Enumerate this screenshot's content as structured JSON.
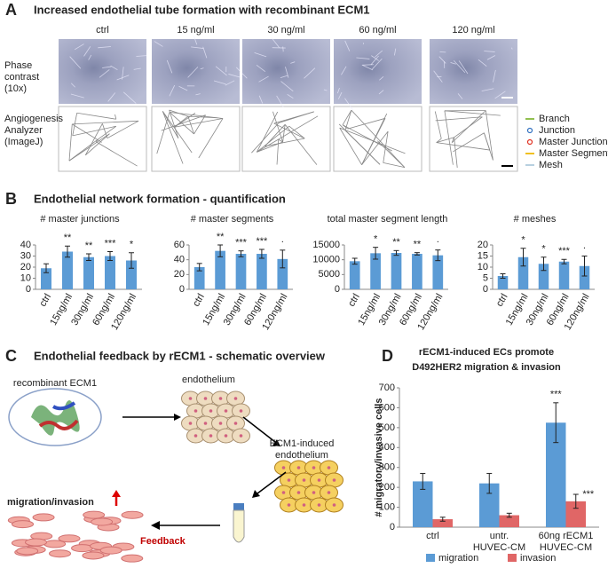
{
  "panel_a": {
    "label": "A",
    "title": "Increased endothelial tube formation with recombinant ECM1",
    "columns": [
      "ctrl",
      "15 ng/ml",
      "30 ng/ml",
      "60 ng/ml",
      "120 ng/ml"
    ],
    "rows": [
      [
        "Phase",
        "contrast",
        "(10x)"
      ],
      [
        "Angiogenesis",
        "Analyzer",
        "(ImageJ)"
      ]
    ],
    "legend": [
      "Branch",
      "Junction",
      "Master Junction",
      "Master Segment",
      "Mesh"
    ]
  },
  "panel_b": {
    "label": "B",
    "title": "Endothelial network formation - quantification"
  },
  "panel_c": {
    "label": "C",
    "title": "Endothelial feedback by rECM1 - schematic overview",
    "recombinant": "recombinant ECM1",
    "endothelium": "endothelium",
    "induced": [
      "ECM1-induced",
      "endothelium"
    ],
    "migration": "migration/invasion",
    "feedback": "Feedback"
  },
  "panel_d": {
    "label": "D"
  },
  "chart_data": [
    {
      "type": "bar",
      "title": "# master junctions",
      "categories": [
        "ctrl",
        "15ng/ml",
        "30ng/ml",
        "60ng/ml",
        "120ng/ml"
      ],
      "series": [
        {
          "color": "#5b9bd5",
          "values": [
            19,
            34,
            29,
            30,
            26
          ],
          "errors": [
            4,
            5,
            3,
            4,
            7
          ],
          "annotations": [
            null,
            "**",
            "**",
            "***",
            "*"
          ]
        }
      ],
      "ylim": [
        0,
        40
      ],
      "yticks": [
        0,
        10,
        20,
        30,
        40
      ]
    },
    {
      "type": "bar",
      "title": "# master segments",
      "categories": [
        "ctrl",
        "15ng/ml",
        "30ng/ml",
        "60ng/ml",
        "120ng/ml"
      ],
      "series": [
        {
          "color": "#5b9bd5",
          "values": [
            30,
            52,
            48,
            48,
            41
          ],
          "errors": [
            5,
            8,
            4,
            6,
            12
          ],
          "annotations": [
            null,
            "**",
            "***",
            "***",
            "·"
          ]
        }
      ],
      "ylim": [
        0,
        60
      ],
      "yticks": [
        0,
        20,
        40,
        60
      ]
    },
    {
      "type": "bar",
      "title": "total master segment length",
      "categories": [
        "ctrl",
        "15ng/ml",
        "30ng/ml",
        "60ng/ml",
        "120ng/ml"
      ],
      "series": [
        {
          "color": "#5b9bd5",
          "values": [
            9500,
            12200,
            12300,
            12000,
            11500
          ],
          "errors": [
            1000,
            2000,
            800,
            400,
            1800
          ],
          "annotations": [
            null,
            "*",
            "**",
            "**",
            "·"
          ]
        }
      ],
      "ylim": [
        0,
        15000
      ],
      "yticks": [
        0,
        5000,
        10000,
        15000
      ]
    },
    {
      "type": "bar",
      "title": "# meshes",
      "categories": [
        "ctrl",
        "15ng/ml",
        "30ng/ml",
        "60ng/ml",
        "120ng/ml"
      ],
      "series": [
        {
          "color": "#5b9bd5",
          "values": [
            6,
            14.5,
            11.5,
            12.5,
            10.5
          ],
          "errors": [
            1,
            4,
            3,
            1,
            4.5
          ],
          "annotations": [
            null,
            "*",
            "*",
            "***",
            "·"
          ]
        }
      ],
      "ylim": [
        0,
        20
      ],
      "yticks": [
        0,
        5,
        10,
        15,
        20
      ]
    },
    {
      "type": "bar",
      "title": [
        "rECM1-induced ECs promote",
        "D492HER2 migration & invasion"
      ],
      "ylabel": "# migratory/invasive cells",
      "categories": [
        [
          "ctrl"
        ],
        [
          "untr.",
          "HUVEC-CM"
        ],
        [
          "60ng rECM1",
          "HUVEC-CM"
        ]
      ],
      "series": [
        {
          "name": "migration",
          "color": "#5b9bd5",
          "values": [
            230,
            220,
            525
          ],
          "errors": [
            40,
            50,
            100
          ],
          "annotations": [
            null,
            null,
            "***"
          ]
        },
        {
          "name": "invasion",
          "color": "#e06666",
          "values": [
            40,
            60,
            130
          ],
          "errors": [
            10,
            10,
            35
          ],
          "annotations": [
            null,
            null,
            "***"
          ]
        }
      ],
      "ylim": [
        0,
        700
      ],
      "yticks": [
        0,
        100,
        200,
        300,
        400,
        500,
        600,
        700
      ]
    }
  ]
}
